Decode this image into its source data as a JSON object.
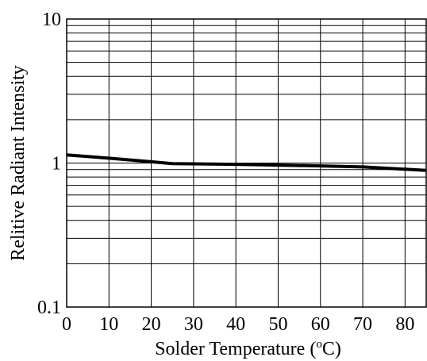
{
  "chart_data": {
    "type": "line",
    "title": "",
    "xlabel": "Solder Temperature (",
    "xlabel_sup": "o",
    "xlabel_end": "C)",
    "ylabel": "Relitive Radiant Intensity",
    "xlim": [
      0,
      85
    ],
    "ylim": [
      0.1,
      10
    ],
    "yscale": "log",
    "grid": true,
    "legend": "none",
    "x_ticks": [
      0,
      10,
      20,
      30,
      40,
      50,
      60,
      70,
      80
    ],
    "y_ticks": [
      0.1,
      1,
      10
    ],
    "x_tick_labels": [
      "0",
      "10",
      "20",
      "30",
      "40",
      "50",
      "60",
      "70",
      "80"
    ],
    "y_tick_labels": [
      "0.1",
      "1",
      "10"
    ],
    "series": [
      {
        "x": [
          0,
          10,
          20,
          25,
          40,
          60,
          70,
          85
        ],
        "y": [
          1.14,
          1.08,
          1.02,
          0.99,
          0.98,
          0.955,
          0.94,
          0.89
        ]
      }
    ]
  },
  "colors": {
    "line": "#000000",
    "grid": "#000000",
    "background": "#ffffff"
  }
}
